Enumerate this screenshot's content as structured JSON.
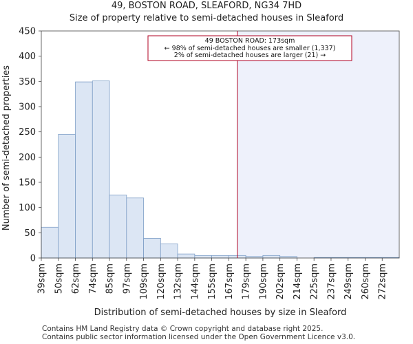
{
  "chart_data": {
    "type": "bar",
    "title": "49, BOSTON ROAD, SLEAFORD, NG34 7HD",
    "subtitle": "Size of property relative to semi-detached houses in Sleaford",
    "xlabel": "Distribution of semi-detached houses by size in Sleaford",
    "ylabel": "Number of semi-detached properties",
    "ylim": [
      0,
      450
    ],
    "yticks": [
      0,
      50,
      100,
      150,
      200,
      250,
      300,
      350,
      400,
      450
    ],
    "categories": [
      "39sqm",
      "50sqm",
      "62sqm",
      "74sqm",
      "85sqm",
      "97sqm",
      "109sqm",
      "120sqm",
      "132sqm",
      "144sqm",
      "155sqm",
      "167sqm",
      "179sqm",
      "190sqm",
      "202sqm",
      "214sqm",
      "225sqm",
      "237sqm",
      "249sqm",
      "260sqm",
      "272sqm"
    ],
    "values": [
      61,
      245,
      349,
      351,
      125,
      119,
      39,
      28,
      8,
      5,
      5,
      5,
      3,
      5,
      3,
      0,
      1,
      1,
      1,
      1,
      1
    ],
    "bar_color": "#dce6f4",
    "bar_edge": "#7f9fc7",
    "highlight_color": "#eef1fb",
    "marker_color": "#b00020",
    "marker_bin": 11.5,
    "annotation": {
      "line1": "49 BOSTON ROAD: 173sqm",
      "line2": "← 98% of semi-detached houses are smaller (1,337)",
      "line3": "2% of semi-detached houses are larger (21) →"
    }
  },
  "footer": {
    "line1": "Contains HM Land Registry data © Crown copyright and database right 2025.",
    "line2": "Contains public sector information licensed under the Open Government Licence v3.0."
  }
}
